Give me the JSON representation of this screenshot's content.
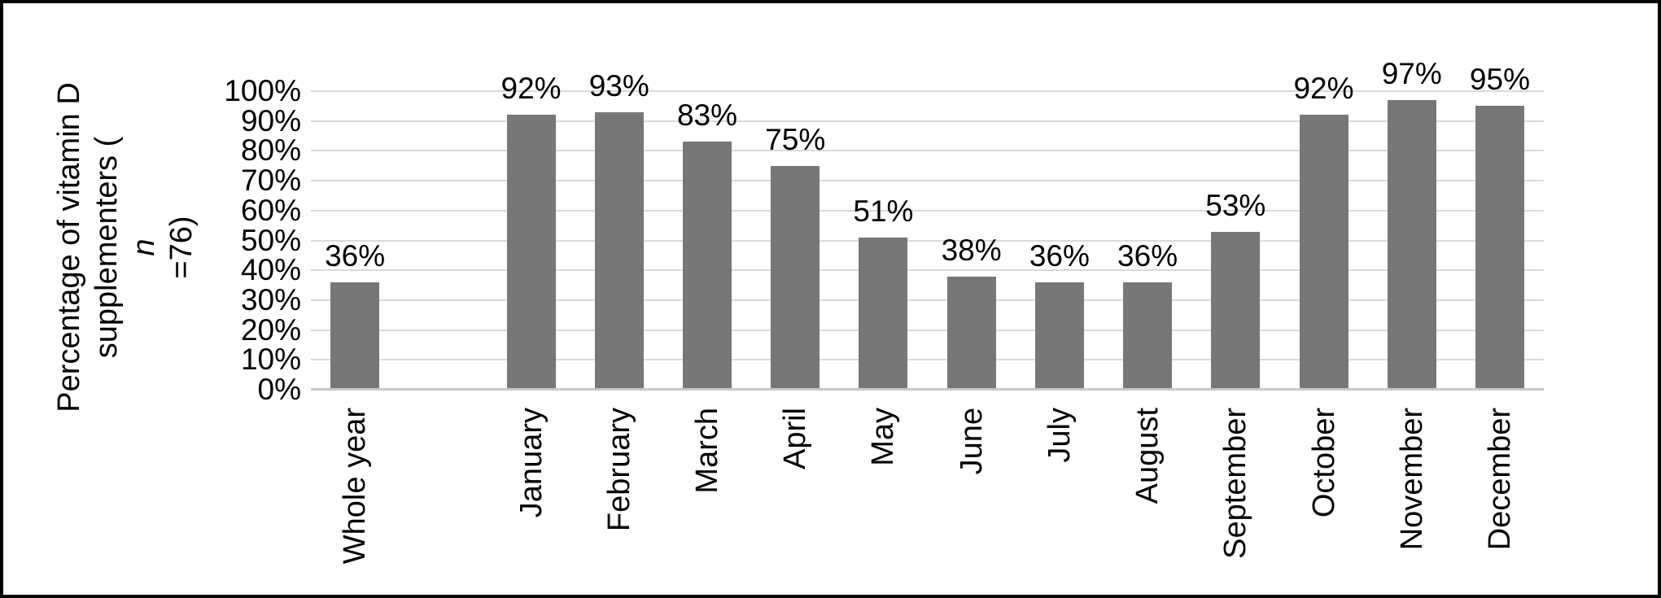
{
  "chart_data": {
    "type": "bar",
    "title": "",
    "xlabel": "",
    "ylabel": "Percentage of vitamin D supplementers (n=76)",
    "ylabel_line1": "Percentage of vitamin D",
    "ylabel_line2_pre": "supplementers (",
    "ylabel_line2_italic": "n",
    "ylabel_line2_post": "=76)",
    "categories": [
      "Whole year",
      "",
      "January",
      "February",
      "March",
      "April",
      "May",
      "June",
      "July",
      "August",
      "September",
      "October",
      "November",
      "December"
    ],
    "values": [
      36,
      null,
      92,
      93,
      83,
      75,
      51,
      38,
      36,
      36,
      53,
      92,
      97,
      95
    ],
    "labels": [
      "36%",
      "",
      "92%",
      "93%",
      "83%",
      "75%",
      "51%",
      "38%",
      "36%",
      "36%",
      "53%",
      "92%",
      "97%",
      "95%"
    ],
    "ytick_labels": [
      "0%",
      "10%",
      "20%",
      "30%",
      "40%",
      "50%",
      "60%",
      "70%",
      "80%",
      "90%",
      "100%"
    ],
    "ylim": [
      0,
      100
    ],
    "grid": true,
    "legend": "none",
    "bar_color": "#777777",
    "gridline_color": "#D9D9D9",
    "axis_line_color": "#C8C8C8",
    "text_color": "#000000",
    "frame_border_color": "#000000",
    "background_color": "#FFFFFF"
  }
}
